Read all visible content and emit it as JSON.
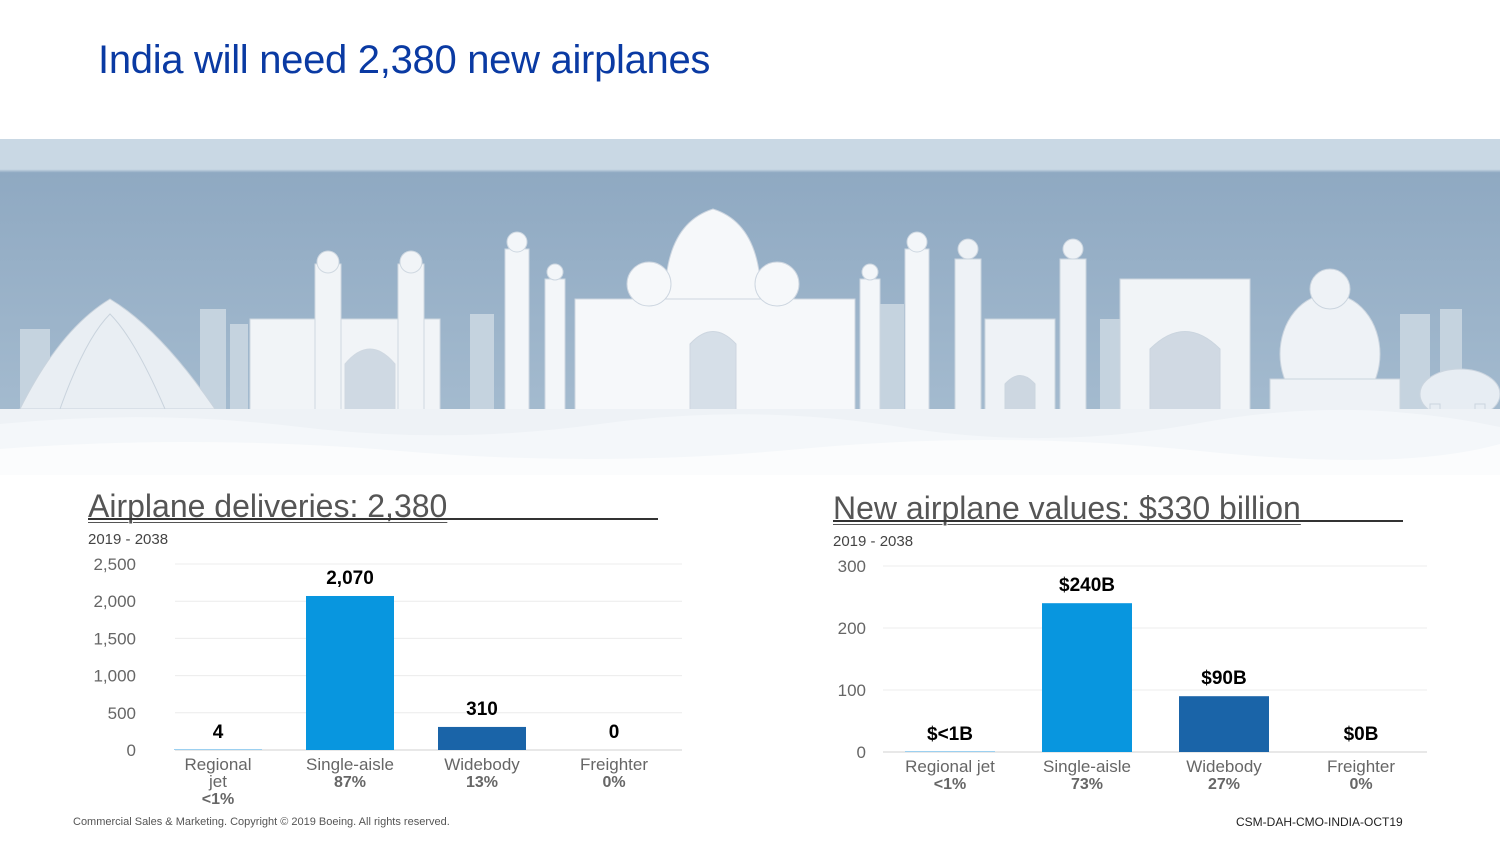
{
  "slide": {
    "title": "India will need 2,380 new airplanes",
    "footer_left": "Commercial Sales & Marketing. Copyright © 2019 Boeing. All rights reserved.",
    "footer_right": "CSM-DAH-CMO-INDIA-OCT19"
  },
  "colors": {
    "title": "#0a3aa3",
    "single_aisle": "#0896df",
    "widebody": "#1a64a8",
    "regional": "#9cd0f0",
    "banner_sky": "#9db6cd"
  },
  "chart_data": [
    {
      "type": "bar",
      "title": "Airplane deliveries: 2,380",
      "subtitle": "2019 - 2038",
      "categories": [
        "Regional jet",
        "Single-aisle",
        "Widebody",
        "Freighter"
      ],
      "category_share": [
        "<1%",
        "87%",
        "13%",
        "0%"
      ],
      "values": [
        4,
        2070,
        310,
        0
      ],
      "data_labels": [
        "4",
        "2,070",
        "310",
        "0"
      ],
      "ylim": [
        0,
        2500
      ],
      "yticks": [
        0,
        500,
        1000,
        1500,
        2000,
        2500
      ],
      "ytick_labels": [
        "0",
        "500",
        "1,000",
        "1,500",
        "2,000",
        "2,500"
      ],
      "grid": true
    },
    {
      "type": "bar",
      "title": "New airplane values: $330 billion",
      "subtitle": "2019 - 2038",
      "categories": [
        "Regional jet",
        "Single-aisle",
        "Widebody",
        "Freighter"
      ],
      "category_share": [
        "<1%",
        "73%",
        "27%",
        "0%"
      ],
      "values": [
        0.5,
        240,
        90,
        0
      ],
      "data_labels": [
        "$<1B",
        "$240B",
        "$90B",
        "$0B"
      ],
      "ylim": [
        0,
        300
      ],
      "yticks": [
        0,
        100,
        200,
        300
      ],
      "ytick_labels": [
        "0",
        "100",
        "200",
        "300"
      ],
      "grid": true
    }
  ]
}
